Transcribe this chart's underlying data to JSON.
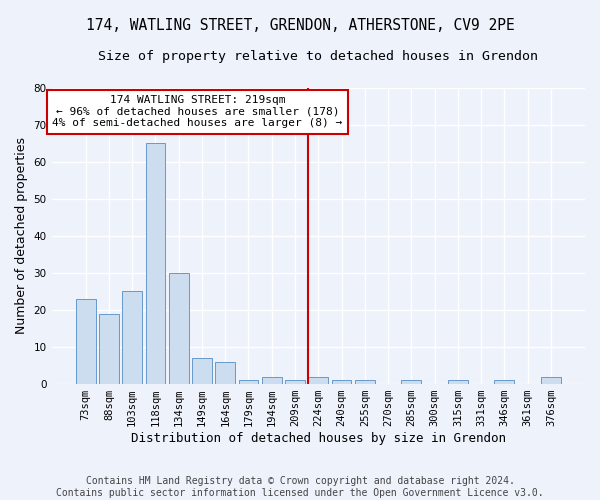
{
  "title_line1": "174, WATLING STREET, GRENDON, ATHERSTONE, CV9 2PE",
  "title_line2": "Size of property relative to detached houses in Grendon",
  "xlabel": "Distribution of detached houses by size in Grendon",
  "ylabel": "Number of detached properties",
  "bar_color": "#ccddf0",
  "bar_edge_color": "#6699cc",
  "categories": [
    "73sqm",
    "88sqm",
    "103sqm",
    "118sqm",
    "134sqm",
    "149sqm",
    "164sqm",
    "179sqm",
    "194sqm",
    "209sqm",
    "224sqm",
    "240sqm",
    "255sqm",
    "270sqm",
    "285sqm",
    "300sqm",
    "315sqm",
    "331sqm",
    "346sqm",
    "361sqm",
    "376sqm"
  ],
  "values": [
    23,
    19,
    25,
    65,
    30,
    7,
    6,
    1,
    2,
    1,
    2,
    1,
    1,
    0,
    1,
    0,
    1,
    0,
    1,
    0,
    2
  ],
  "ylim": [
    0,
    80
  ],
  "yticks": [
    0,
    10,
    20,
    30,
    40,
    50,
    60,
    70,
    80
  ],
  "vline_x_index": 9.55,
  "vline_color": "#cc0000",
  "annotation_text": "174 WATLING STREET: 219sqm\n← 96% of detached houses are smaller (178)\n4% of semi-detached houses are larger (8) →",
  "annotation_box_color": "#ffffff",
  "annotation_box_edge": "#cc0000",
  "footer_text": "Contains HM Land Registry data © Crown copyright and database right 2024.\nContains public sector information licensed under the Open Government Licence v3.0.",
  "background_color": "#eef2fb",
  "grid_color": "#ffffff",
  "title_fontsize": 10.5,
  "subtitle_fontsize": 9.5,
  "axis_label_fontsize": 9,
  "tick_fontsize": 7.5,
  "annotation_fontsize": 8,
  "footer_fontsize": 7
}
